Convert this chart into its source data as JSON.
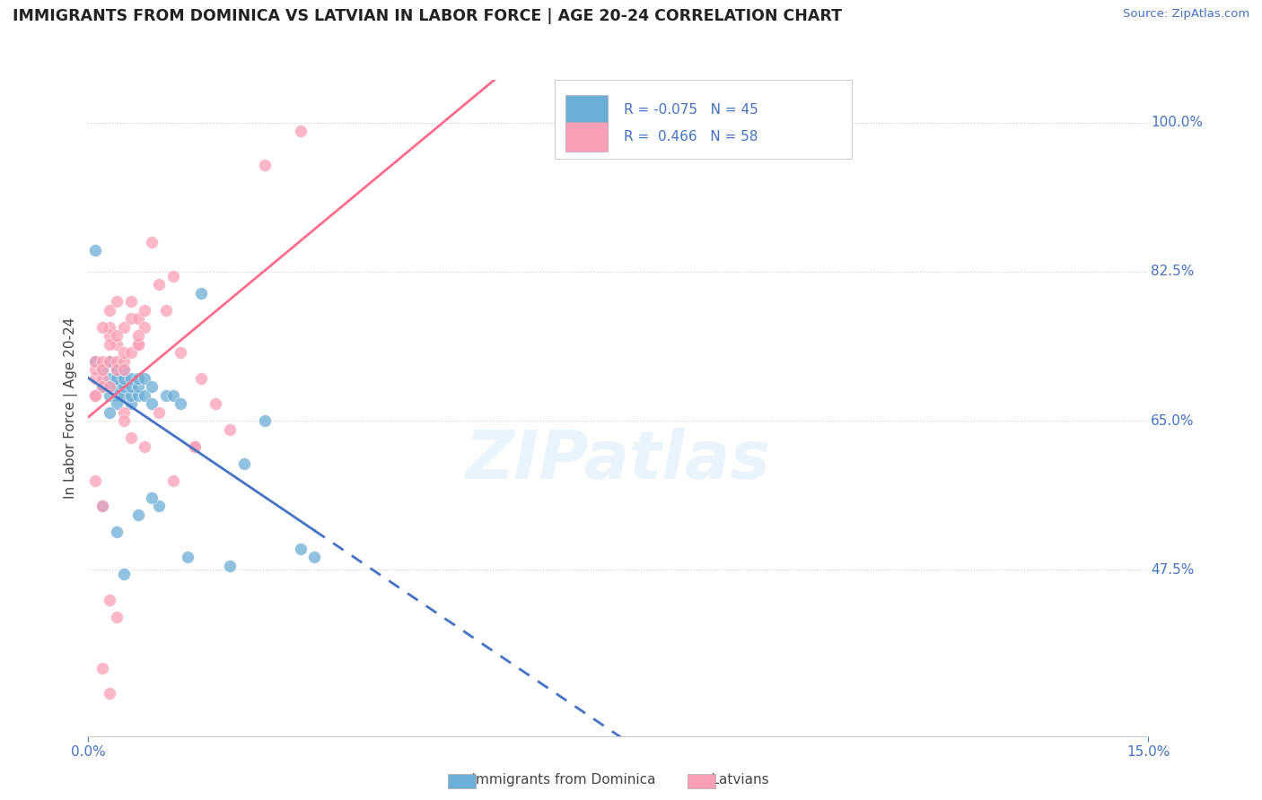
{
  "title": "IMMIGRANTS FROM DOMINICA VS LATVIAN IN LABOR FORCE | AGE 20-24 CORRELATION CHART",
  "source": "Source: ZipAtlas.com",
  "ylabel": "In Labor Force | Age 20-24",
  "xlim": [
    0.0,
    0.15
  ],
  "ylim": [
    0.28,
    1.05
  ],
  "yticks_right": [
    1.0,
    0.825,
    0.65,
    0.475
  ],
  "yticks_right_labels": [
    "100.0%",
    "82.5%",
    "65.0%",
    "47.5%"
  ],
  "blue_R": -0.075,
  "blue_N": 45,
  "pink_R": 0.466,
  "pink_N": 58,
  "blue_color": "#6baed6",
  "pink_color": "#fa9fb5",
  "blue_label": "Immigrants from Dominica",
  "pink_label": "Latvians",
  "watermark": "ZIPatlas",
  "blue_x": [
    0.001,
    0.002,
    0.002,
    0.003,
    0.003,
    0.003,
    0.003,
    0.004,
    0.004,
    0.004,
    0.004,
    0.004,
    0.005,
    0.005,
    0.005,
    0.005,
    0.006,
    0.006,
    0.006,
    0.006,
    0.007,
    0.007,
    0.007,
    0.008,
    0.008,
    0.009,
    0.009,
    0.01,
    0.011,
    0.012,
    0.013,
    0.014,
    0.016,
    0.02,
    0.022,
    0.025,
    0.03,
    0.032,
    0.001,
    0.002,
    0.003,
    0.004,
    0.005,
    0.007,
    0.009
  ],
  "blue_y": [
    0.72,
    0.69,
    0.71,
    0.69,
    0.7,
    0.72,
    0.68,
    0.68,
    0.67,
    0.69,
    0.71,
    0.7,
    0.68,
    0.69,
    0.7,
    0.71,
    0.67,
    0.68,
    0.7,
    0.69,
    0.68,
    0.69,
    0.7,
    0.68,
    0.7,
    0.67,
    0.69,
    0.55,
    0.68,
    0.68,
    0.67,
    0.49,
    0.8,
    0.48,
    0.6,
    0.65,
    0.5,
    0.49,
    0.85,
    0.55,
    0.66,
    0.52,
    0.47,
    0.54,
    0.56
  ],
  "pink_x": [
    0.001,
    0.001,
    0.001,
    0.001,
    0.002,
    0.002,
    0.002,
    0.002,
    0.003,
    0.003,
    0.003,
    0.003,
    0.003,
    0.004,
    0.004,
    0.004,
    0.004,
    0.005,
    0.005,
    0.005,
    0.005,
    0.006,
    0.006,
    0.006,
    0.007,
    0.007,
    0.007,
    0.008,
    0.008,
    0.009,
    0.01,
    0.011,
    0.012,
    0.013,
    0.015,
    0.016,
    0.018,
    0.02,
    0.025,
    0.03,
    0.001,
    0.002,
    0.003,
    0.004,
    0.005,
    0.007,
    0.001,
    0.002,
    0.003,
    0.004,
    0.005,
    0.006,
    0.008,
    0.01,
    0.012,
    0.015,
    0.002,
    0.003
  ],
  "pink_y": [
    0.7,
    0.71,
    0.72,
    0.68,
    0.7,
    0.72,
    0.69,
    0.71,
    0.72,
    0.75,
    0.76,
    0.78,
    0.69,
    0.72,
    0.74,
    0.71,
    0.79,
    0.72,
    0.73,
    0.76,
    0.71,
    0.73,
    0.77,
    0.79,
    0.74,
    0.77,
    0.74,
    0.78,
    0.76,
    0.86,
    0.81,
    0.78,
    0.82,
    0.73,
    0.62,
    0.7,
    0.67,
    0.64,
    0.95,
    0.99,
    0.68,
    0.76,
    0.74,
    0.75,
    0.66,
    0.75,
    0.58,
    0.55,
    0.44,
    0.42,
    0.65,
    0.63,
    0.62,
    0.66,
    0.58,
    0.62,
    0.36,
    0.33
  ]
}
